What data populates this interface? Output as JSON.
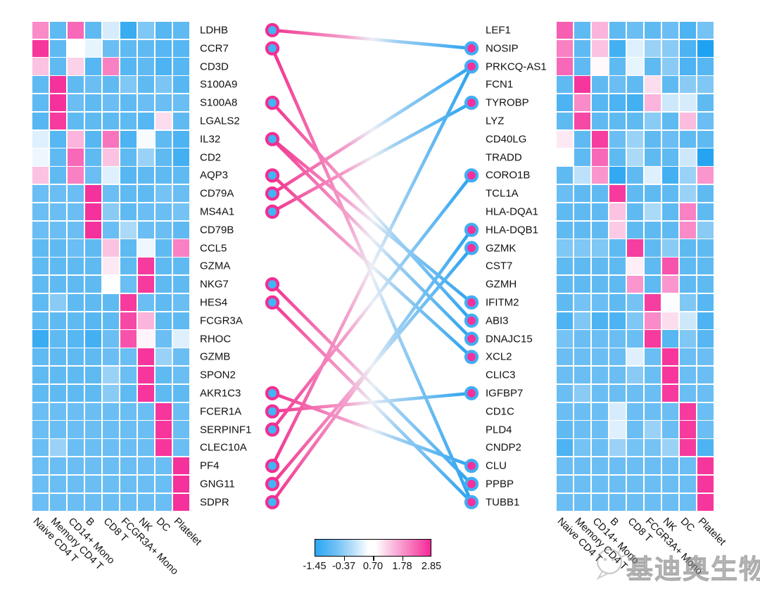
{
  "colors": {
    "background": "#ffffff",
    "left_dot_fill": "#42b4f4",
    "left_dot_ring": "#f22e92",
    "right_dot_fill": "#f5309c",
    "right_dot_ring": "#41aef2",
    "link_pink": "#f2338f",
    "link_blue": "#29a2f0",
    "heat_min_blue": "#0d9bf2",
    "heat_mid_white": "#ffffff",
    "heat_max_magenta": "#f52796"
  },
  "cell_types": [
    "Naive CD4 T",
    "Memory CD4 T",
    "CD14+ Mono",
    "B",
    "CD8 T",
    "FCGR3A+ Mono",
    "NK",
    "DC",
    "Platelet"
  ],
  "colorbar": {
    "tick_labels": [
      "-1.45",
      "-0.37",
      "0.70",
      "1.78",
      "2.85"
    ]
  },
  "watermark": {
    "text": "基迪奥生物",
    "logo": "speech-bubble-mascot"
  },
  "chart_data": {
    "type": "heatmap",
    "description": "Two marker-gene heatmaps (scaled expression per cell type) joined by a gradient link plot between paired genes",
    "value_range": [
      -1.45,
      2.85
    ],
    "legend_ticks": [
      -1.45,
      -0.37,
      0.7,
      1.78,
      2.85
    ],
    "columns": [
      "Naive CD4 T",
      "Memory CD4 T",
      "CD14+ Mono",
      "B",
      "CD8 T",
      "FCGR3A+ Mono",
      "NK",
      "DC",
      "Platelet"
    ],
    "heatmaps": [
      {
        "side": "left",
        "genes": [
          "LDHB",
          "CCR7",
          "CD3D",
          "S100A9",
          "S100A8",
          "LGALS2",
          "IL32",
          "CD2",
          "AQP3",
          "CD79A",
          "MS4A1",
          "CD79B",
          "CCL5",
          "GZMA",
          "NKG7",
          "HES4",
          "FCGR3A",
          "RHOC",
          "GZMB",
          "SPON2",
          "AKR1C3",
          "FCER1A",
          "SERPINF1",
          "CLEC10A",
          "PF4",
          "GNG11",
          "SDPR"
        ],
        "values": [
          [
            1.6,
            -0.4,
            1.9,
            -0.4,
            0.45,
            -0.8,
            -0.1,
            -0.5,
            -0.4
          ],
          [
            2.5,
            -0.4,
            0.7,
            0.55,
            -0.3,
            -0.4,
            -0.4,
            -0.5,
            -0.5
          ],
          [
            1.2,
            -0.4,
            1.1,
            -0.5,
            1.7,
            -0.5,
            -0.4,
            -0.6,
            -0.5
          ],
          [
            -0.4,
            2.6,
            -0.4,
            -0.3,
            -0.4,
            -0.1,
            -0.4,
            -0.15,
            -0.5
          ],
          [
            -0.4,
            2.6,
            -0.3,
            -0.4,
            -0.3,
            -0.4,
            -0.3,
            -0.3,
            -0.3
          ],
          [
            -0.5,
            2.4,
            -0.4,
            -0.4,
            -0.4,
            -0.4,
            -0.5,
            1.0,
            -0.4
          ],
          [
            0.5,
            -0.5,
            1.3,
            -0.5,
            1.8,
            -0.6,
            0.65,
            -0.4,
            -0.6
          ],
          [
            0.6,
            -0.4,
            1.9,
            -0.4,
            1.2,
            -0.4,
            0.1,
            -0.4,
            -0.7
          ],
          [
            1.2,
            -0.4,
            1.7,
            -0.3,
            0.5,
            -0.5,
            -0.4,
            -0.4,
            -0.4
          ],
          [
            -0.3,
            -0.3,
            -0.3,
            2.6,
            -0.3,
            -0.4,
            -0.4,
            -0.2,
            -0.3
          ],
          [
            -0.3,
            -0.3,
            -0.3,
            2.6,
            0.0,
            -0.4,
            -0.3,
            -0.3,
            -0.2
          ],
          [
            -0.3,
            -0.3,
            -0.3,
            2.6,
            -0.3,
            0.2,
            -0.3,
            -0.3,
            -0.4
          ],
          [
            -0.4,
            -0.4,
            -0.3,
            -0.4,
            1.2,
            -0.4,
            0.6,
            -0.4,
            1.7
          ],
          [
            -0.4,
            -0.4,
            -0.4,
            -0.4,
            0.9,
            -0.4,
            2.4,
            -0.4,
            -0.4
          ],
          [
            -0.4,
            -0.4,
            -0.4,
            -0.4,
            0.7,
            -0.3,
            2.4,
            -0.4,
            -0.4
          ],
          [
            -0.4,
            0.0,
            -0.4,
            -0.4,
            -0.4,
            2.4,
            -0.3,
            -0.4,
            -0.3
          ],
          [
            -0.4,
            -0.4,
            -0.4,
            -0.5,
            -0.4,
            2.2,
            1.3,
            -0.4,
            -0.4
          ],
          [
            -0.8,
            -0.4,
            -0.5,
            -0.7,
            -0.3,
            2.1,
            0.8,
            -0.3,
            0.5
          ],
          [
            -0.4,
            -0.4,
            -0.4,
            -0.4,
            -0.3,
            -0.3,
            2.5,
            0.1,
            -0.3
          ],
          [
            -0.4,
            -0.4,
            -0.4,
            -0.4,
            0.1,
            -0.3,
            2.5,
            -0.4,
            -0.3
          ],
          [
            -0.4,
            -0.4,
            -0.4,
            -0.4,
            0.0,
            -0.4,
            2.5,
            -0.4,
            -0.4
          ],
          [
            -0.3,
            -0.3,
            -0.3,
            -0.3,
            -0.3,
            -0.3,
            -0.3,
            2.5,
            -0.3
          ],
          [
            -0.3,
            -0.3,
            -0.3,
            -0.3,
            -0.3,
            -0.3,
            -0.3,
            2.5,
            -0.3
          ],
          [
            -0.3,
            0.1,
            -0.3,
            -0.3,
            -0.3,
            -0.3,
            -0.3,
            2.5,
            -0.3
          ],
          [
            -0.3,
            -0.3,
            -0.3,
            -0.3,
            -0.3,
            -0.3,
            -0.3,
            -0.3,
            2.6
          ],
          [
            -0.3,
            -0.3,
            -0.3,
            -0.3,
            -0.3,
            -0.3,
            -0.3,
            -0.3,
            2.6
          ],
          [
            -0.3,
            -0.3,
            -0.3,
            -0.3,
            -0.3,
            -0.3,
            -0.3,
            -0.3,
            2.6
          ]
        ]
      },
      {
        "side": "right",
        "genes": [
          "LEF1",
          "NOSIP",
          "PRKCQ-AS1",
          "FCN1",
          "TYROBP",
          "LYZ",
          "CD40LG",
          "TRADD",
          "CORO1B",
          "TCL1A",
          "HLA-DQA1",
          "HLA-DQB1",
          "GZMK",
          "CST7",
          "GZMH",
          "IFITM2",
          "ABI3",
          "DNAJC15",
          "XCL2",
          "CLIC3",
          "IGFBP7",
          "CD1C",
          "PLD4",
          "CNDP2",
          "CLU",
          "PPBP",
          "TUBB1"
        ],
        "values": [
          [
            2.0,
            -0.4,
            1.3,
            -0.4,
            -0.3,
            -0.4,
            -0.3,
            -0.6,
            -0.2
          ],
          [
            1.7,
            -0.4,
            1.2,
            -0.7,
            0.5,
            0.1,
            0.0,
            -0.6,
            -1.2
          ],
          [
            1.9,
            -0.4,
            0.75,
            -0.4,
            0.55,
            -0.4,
            0.0,
            -0.6,
            -0.5
          ],
          [
            -0.4,
            2.5,
            -0.4,
            -0.3,
            -0.4,
            1.0,
            -0.4,
            0.0,
            -0.1
          ],
          [
            -0.6,
            1.6,
            -0.5,
            -0.6,
            -0.7,
            1.3,
            0.4,
            0.45,
            -0.4
          ],
          [
            -0.4,
            2.2,
            -0.4,
            -0.4,
            -0.4,
            0.0,
            -0.4,
            1.25,
            -0.3
          ],
          [
            0.9,
            -0.4,
            2.3,
            -0.3,
            0.1,
            -0.4,
            -0.3,
            -0.4,
            -0.4
          ],
          [
            0.7,
            -0.4,
            1.9,
            -0.4,
            0.2,
            -0.4,
            -0.4,
            0.4,
            -1.1
          ],
          [
            -0.4,
            0.3,
            1.5,
            -0.9,
            -0.4,
            0.5,
            -0.7,
            0.1,
            1.5
          ],
          [
            -0.3,
            -0.4,
            -0.4,
            2.4,
            -0.4,
            -0.4,
            -0.4,
            0.1,
            -0.4
          ],
          [
            -0.4,
            -0.4,
            -0.4,
            1.2,
            -0.4,
            0.2,
            -0.4,
            1.7,
            -0.4
          ],
          [
            -0.4,
            -0.4,
            -0.4,
            1.15,
            -0.4,
            -0.4,
            -0.4,
            1.6,
            0.0
          ],
          [
            -0.1,
            -0.1,
            -0.1,
            -0.4,
            2.3,
            -0.4,
            0.0,
            -0.4,
            -0.4
          ],
          [
            -0.4,
            -0.4,
            -0.4,
            -0.4,
            0.85,
            -0.4,
            2.1,
            -0.4,
            -0.4
          ],
          [
            -0.4,
            -0.4,
            -0.4,
            -0.4,
            1.5,
            -0.4,
            1.5,
            -0.4,
            -0.4
          ],
          [
            -0.4,
            -0.2,
            -0.3,
            -0.4,
            -0.2,
            2.3,
            0.68,
            -0.1,
            -0.5
          ],
          [
            -0.6,
            -0.1,
            -0.6,
            -0.6,
            -0.1,
            1.6,
            1.0,
            0.4,
            -0.6
          ],
          [
            -0.2,
            -0.3,
            -0.3,
            -0.3,
            -0.3,
            2.4,
            -0.5,
            -0.1,
            -0.5
          ],
          [
            -0.3,
            -0.3,
            -0.3,
            -0.3,
            0.5,
            -0.3,
            2.5,
            -0.3,
            -0.3
          ],
          [
            -0.3,
            -0.3,
            -0.3,
            -0.3,
            0.0,
            -0.3,
            2.5,
            -0.3,
            -0.3
          ],
          [
            -0.3,
            0.0,
            -0.3,
            -0.3,
            -0.3,
            -0.3,
            2.4,
            -0.3,
            -0.3
          ],
          [
            -0.3,
            -0.3,
            -0.3,
            0.45,
            -0.3,
            -0.3,
            -0.3,
            2.4,
            -0.3
          ],
          [
            -0.4,
            -0.3,
            -0.3,
            0.5,
            -0.3,
            0.1,
            -0.3,
            2.4,
            -0.3
          ],
          [
            -0.6,
            -0.2,
            -0.3,
            0.1,
            -0.2,
            -0.2,
            0.1,
            2.4,
            -0.6
          ],
          [
            -0.3,
            -0.3,
            -0.3,
            -0.3,
            -0.3,
            -0.3,
            -0.3,
            -0.3,
            2.5
          ],
          [
            -0.3,
            -0.3,
            -0.3,
            -0.3,
            -0.3,
            -0.3,
            -0.3,
            -0.3,
            2.5
          ],
          [
            -0.3,
            -0.3,
            -0.3,
            -0.3,
            -0.3,
            -0.3,
            -0.3,
            -0.3,
            2.5
          ]
        ]
      }
    ],
    "links": {
      "left_dot_genes": [
        "LDHB",
        "CCR7",
        "S100A8",
        "IL32",
        "AQP3",
        "CD79A",
        "MS4A1",
        "NKG7",
        "HES4",
        "AKR1C3",
        "FCER1A",
        "SERPINF1",
        "PF4",
        "GNG11",
        "SDPR"
      ],
      "right_dot_genes": [
        "NOSIP",
        "PRKCQ-AS1",
        "TYROBP",
        "CORO1B",
        "HLA-DQB1",
        "GZMK",
        "IFITM2",
        "ABI3",
        "DNAJC15",
        "XCL2",
        "IGFBP7",
        "CLU",
        "PPBP",
        "TUBB1"
      ],
      "edges": [
        [
          "LDHB",
          "NOSIP"
        ],
        [
          "CCR7",
          "TUBB1"
        ],
        [
          "S100A8",
          "ABI3"
        ],
        [
          "IL32",
          "IFITM2"
        ],
        [
          "IL32",
          "DNAJC15"
        ],
        [
          "AQP3",
          "XCL2"
        ],
        [
          "CD79A",
          "PRKCQ-AS1"
        ],
        [
          "MS4A1",
          "TYROBP"
        ],
        [
          "NKG7",
          "PPBP"
        ],
        [
          "HES4",
          "TUBB1"
        ],
        [
          "AKR1C3",
          "CLU"
        ],
        [
          "FCER1A",
          "IGFBP7"
        ],
        [
          "SERPINF1",
          "CORO1B"
        ],
        [
          "PF4",
          "PRKCQ-AS1"
        ],
        [
          "GNG11",
          "GZMK"
        ],
        [
          "SDPR",
          "HLA-DQB1"
        ]
      ]
    }
  },
  "layout_note": "heatmap of scaled expression, blue=low pink=high"
}
